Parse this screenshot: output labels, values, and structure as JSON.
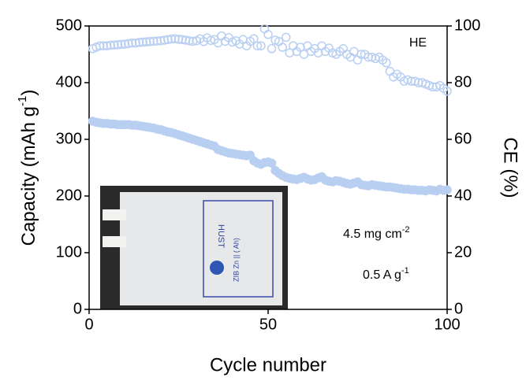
{
  "chart_data": {
    "type": "scatter",
    "x_label": "Cycle number",
    "y_label": {
      "text": "Capacity (mAh g",
      "sup": "-1",
      "tail": ")"
    },
    "y2_label": "CE (%)",
    "annotations": [
      {
        "text": "HE"
      },
      {
        "text": "4.5 mg cm",
        "sup": "-2"
      },
      {
        "text": "0.5 A g",
        "sup": "-1"
      }
    ],
    "inset_texts": [
      "HUST",
      "ZIB  Zn ||     (    Ah)"
    ],
    "xlim": [
      0,
      100
    ],
    "xticks": [
      0,
      50,
      100
    ],
    "ylim": [
      0,
      500
    ],
    "yticks": [
      0,
      100,
      200,
      300,
      400,
      500
    ],
    "y2lim": [
      0,
      100
    ],
    "y2ticks": [
      0,
      20,
      40,
      60,
      80,
      100
    ],
    "x": [
      1,
      2,
      3,
      4,
      5,
      6,
      7,
      8,
      9,
      10,
      11,
      12,
      13,
      14,
      15,
      16,
      17,
      18,
      19,
      20,
      21,
      22,
      23,
      24,
      25,
      26,
      27,
      28,
      29,
      30,
      31,
      32,
      33,
      34,
      35,
      36,
      37,
      38,
      39,
      40,
      41,
      42,
      43,
      44,
      45,
      46,
      47,
      48,
      49,
      50,
      51,
      52,
      53,
      54,
      55,
      56,
      57,
      58,
      59,
      60,
      61,
      62,
      63,
      64,
      65,
      66,
      67,
      68,
      69,
      70,
      71,
      72,
      73,
      74,
      75,
      76,
      77,
      78,
      79,
      80,
      81,
      82,
      83,
      84,
      85,
      86,
      87,
      88,
      89,
      90,
      91,
      92,
      93,
      94,
      95,
      96,
      97,
      98,
      99,
      100
    ],
    "series": [
      {
        "color": "#b9cff2",
        "filled": true,
        "values": [
          332,
          330,
          329,
          328,
          328,
          327,
          327,
          326,
          326,
          326,
          326,
          325,
          325,
          324,
          323,
          322,
          321,
          320,
          318,
          317,
          315,
          313,
          312,
          310,
          308,
          306,
          304,
          302,
          300,
          298,
          296,
          294,
          292,
          290,
          288,
          282,
          280,
          278,
          276,
          275,
          274,
          273,
          272,
          271,
          272,
          262,
          258,
          256,
          259,
          260,
          258,
          245,
          240,
          236,
          233,
          231,
          230,
          229,
          231,
          233,
          230,
          228,
          229,
          232,
          234,
          228,
          226,
          225,
          227,
          226,
          224,
          222,
          221,
          223,
          225,
          220,
          219,
          218,
          220,
          219,
          218,
          217,
          216,
          216,
          215,
          214,
          213,
          212,
          212,
          211,
          211,
          210,
          210,
          209,
          211,
          210,
          209,
          212,
          210,
          211
        ]
      },
      {
        "color": "#b9cff2",
        "filled": false,
        "axis": "y2",
        "values": [
          92,
          92.5,
          93,
          93,
          93,
          93.2,
          93.3,
          93.4,
          93.5,
          93.6,
          93.8,
          94,
          94,
          94.2,
          94.3,
          94.4,
          94.5,
          94.6,
          94.7,
          94.8,
          95,
          95.2,
          95.4,
          95.5,
          95.3,
          95.2,
          95,
          94.8,
          94.6,
          94.8,
          95.5,
          94.5,
          95.8,
          94.9,
          95.2,
          94,
          96.5,
          94.6,
          95.9,
          94.3,
          94.8,
          93.6,
          95.2,
          93,
          94.6,
          95.5,
          93,
          93,
          99,
          97,
          92,
          95,
          94.5,
          92.5,
          96,
          90.5,
          93,
          91,
          92.5,
          90,
          93,
          91,
          92,
          90.5,
          93,
          91,
          92.2,
          90.5,
          90,
          91,
          92,
          90,
          89,
          91,
          88,
          90,
          90,
          89,
          89,
          88.5,
          89,
          88,
          87,
          84,
          82,
          83,
          82,
          80.5,
          81,
          80.5,
          80.5,
          80,
          80,
          79.5,
          79,
          78.5,
          78.5,
          79,
          78,
          77
        ]
      }
    ]
  }
}
